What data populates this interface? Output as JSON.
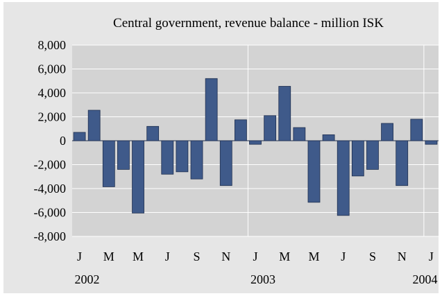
{
  "chart_data": {
    "type": "bar",
    "title": "Central government, revenue balance - million ISK",
    "xlabel": "",
    "ylabel": "",
    "ylim": [
      -8000,
      8000
    ],
    "yticks": [
      8000,
      6000,
      4000,
      2000,
      0,
      -2000,
      -4000,
      -6000,
      -8000
    ],
    "ytick_labels": [
      "8,000",
      "6,000",
      "4,000",
      "2,000",
      "0",
      "-2,000",
      "-4,000",
      "-6,000",
      "-8,000"
    ],
    "grid": true,
    "legend": "none",
    "categories": [
      "2002-01",
      "2002-02",
      "2002-03",
      "2002-04",
      "2002-05",
      "2002-06",
      "2002-07",
      "2002-08",
      "2002-09",
      "2002-10",
      "2002-11",
      "2002-12",
      "2003-01",
      "2003-02",
      "2003-03",
      "2003-04",
      "2003-05",
      "2003-06",
      "2003-07",
      "2003-08",
      "2003-09",
      "2003-10",
      "2003-11",
      "2003-12",
      "2004-01"
    ],
    "x_tick_labels": [
      "J",
      "M",
      "M",
      "J",
      "S",
      "N",
      "J",
      "M",
      "M",
      "J",
      "S",
      "N",
      "J"
    ],
    "year_labels": [
      "2002",
      "2003",
      "2004"
    ],
    "values": [
      700,
      2550,
      -3850,
      -2400,
      -6050,
      1200,
      -2800,
      -2600,
      -3200,
      5200,
      -3750,
      1750,
      -300,
      2100,
      4550,
      1100,
      -5150,
      500,
      -6250,
      -2950,
      -2400,
      1450,
      -3750,
      1800,
      -300
    ],
    "bar_color": "#3f5a8a",
    "plot_background": "#d3d3d3",
    "frame_background": "#e6e6e6"
  }
}
